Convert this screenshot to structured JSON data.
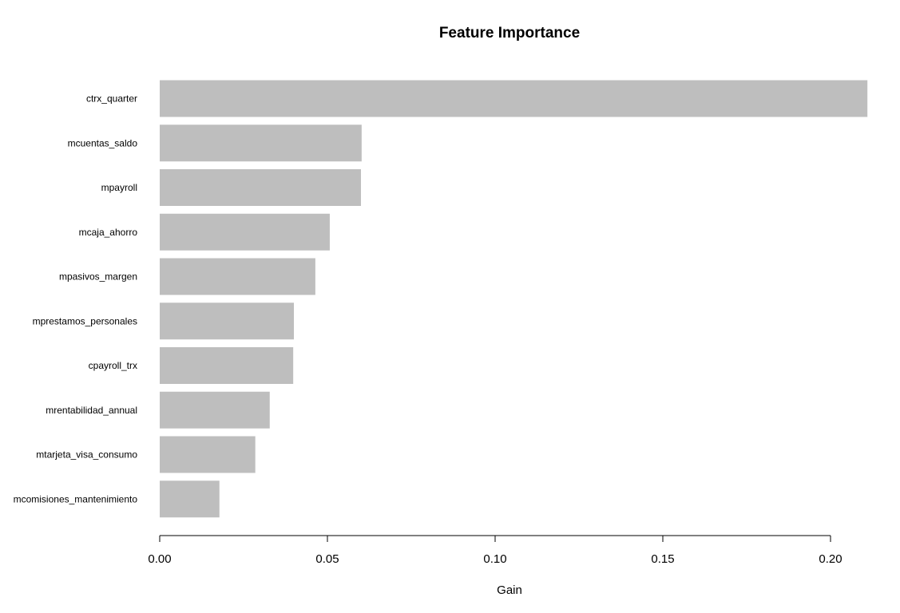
{
  "chart_data": {
    "type": "bar",
    "orientation": "horizontal",
    "title": "Feature Importance",
    "xlabel": "Gain",
    "ylabel": "",
    "xlim": [
      0,
      0.21
    ],
    "x_ticks": [
      0.0,
      0.05,
      0.1,
      0.15,
      0.2
    ],
    "x_tick_labels": [
      "0.00",
      "0.05",
      "0.10",
      "0.15",
      "0.20"
    ],
    "grid": false,
    "legend": "none",
    "bar_color": "#bebebe",
    "categories": [
      "ctrx_quarter",
      "mcuentas_saldo",
      "mpayroll",
      "mcaja_ahorro",
      "mpasivos_margen",
      "mprestamos_personales",
      "cpayroll_trx",
      "mrentabilidad_annual",
      "mtarjeta_visa_consumo",
      "mcomisiones_mantenimiento"
    ],
    "values": [
      0.211,
      0.0602,
      0.06,
      0.0507,
      0.0464,
      0.04,
      0.0398,
      0.0328,
      0.0285,
      0.0178
    ]
  }
}
